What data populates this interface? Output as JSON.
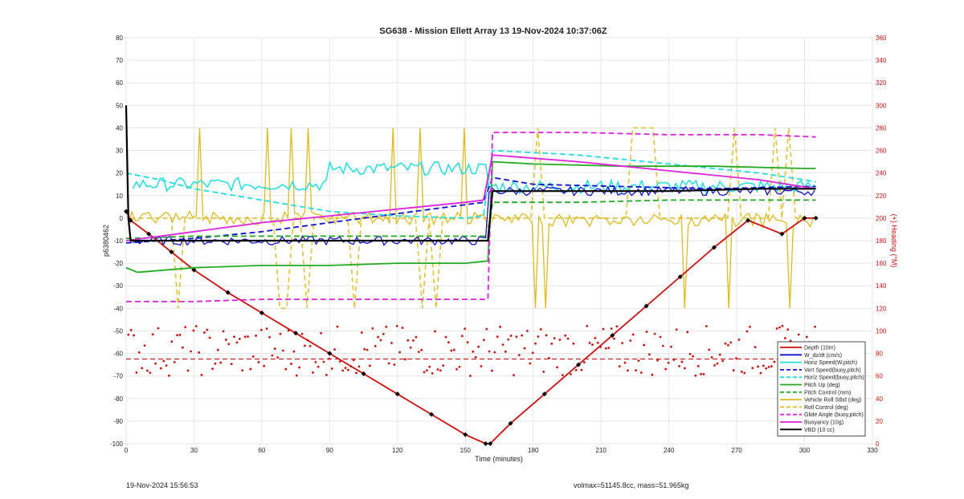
{
  "chart_data": {
    "type": "line",
    "title": "SG638 - Mission Ellett Array 13 19-Nov-2024 10:37:06Z",
    "xlabel": "Time (minutes)",
    "ylabel": "p6380462",
    "y2label": "(+) Heading (°M)",
    "xlim": [
      0,
      330
    ],
    "ylim": [
      -100,
      80
    ],
    "y2lim": [
      0,
      360
    ],
    "xticks": [
      0,
      30,
      60,
      90,
      120,
      150,
      180,
      210,
      240,
      270,
      300,
      330
    ],
    "yticks": [
      -100,
      -90,
      -80,
      -70,
      -60,
      -50,
      -40,
      -30,
      -20,
      -10,
      0,
      10,
      20,
      30,
      40,
      50,
      60,
      70,
      80
    ],
    "y2ticks": [
      0,
      20,
      40,
      60,
      80,
      100,
      120,
      140,
      160,
      180,
      200,
      220,
      240,
      260,
      280,
      300,
      320,
      340,
      360
    ],
    "grid": true,
    "legend_position": "bottom-right",
    "series": [
      {
        "name": "Depth (10m)",
        "color": "#cc1111",
        "style": "solid",
        "marker": "diamond",
        "x": [
          0,
          2,
          10,
          20,
          30,
          45,
          60,
          75,
          90,
          105,
          120,
          135,
          150,
          159,
          161,
          170,
          185,
          200,
          215,
          230,
          245,
          260,
          275,
          290,
          300,
          305
        ],
        "y": [
          3,
          -1,
          -7,
          -15,
          -23,
          -33,
          -42,
          -51,
          -60,
          -69,
          -78,
          -87,
          -96,
          -100,
          -100,
          -91,
          -78,
          -65,
          -52,
          -39,
          -26,
          -13,
          -1,
          -7,
          0,
          0
        ]
      },
      {
        "name": "Vert Speed (buoy,pitch)",
        "color": "#1111cc",
        "style": "dashed",
        "x": [
          0,
          30,
          60,
          90,
          120,
          158,
          162,
          180,
          220,
          260,
          300,
          305
        ],
        "y": [
          -11,
          -9,
          -6,
          -2,
          2,
          7,
          18,
          15,
          14,
          13,
          14,
          14
        ]
      },
      {
        "name": "Horiz Speed (buoy,pitch)",
        "color": "#22dddd",
        "style": "dashed",
        "x": [
          0,
          15,
          30,
          60,
          90,
          120,
          150,
          158,
          162,
          200,
          240,
          280,
          300,
          305
        ],
        "y": [
          20,
          17,
          13,
          8,
          3,
          1,
          0,
          1,
          30,
          28,
          24,
          20,
          17,
          16
        ]
      },
      {
        "name": "Pitch Up (deg)",
        "color": "#22aa22",
        "style": "solid",
        "x": [
          0,
          5,
          30,
          60,
          90,
          120,
          150,
          160,
          162,
          180,
          220,
          260,
          300,
          305
        ],
        "y": [
          -22,
          -24,
          -22,
          -21,
          -21,
          -20,
          -20,
          -19,
          25,
          24,
          23,
          23,
          22,
          22
        ]
      },
      {
        "name": "Pitch Control (mm)",
        "color": "#22aa22",
        "style": "dashed",
        "x": [
          0,
          30,
          60,
          90,
          120,
          150,
          160,
          162,
          200,
          240,
          280,
          305
        ],
        "y": [
          -9,
          -8,
          -8,
          -8,
          -8,
          -8,
          -8,
          7,
          7,
          8,
          8,
          8
        ]
      },
      {
        "name": "Glide Angle (buoy,pitch)",
        "color": "#dd22dd",
        "style": "dashed",
        "x": [
          0,
          30,
          60,
          90,
          120,
          150,
          160,
          162,
          200,
          240,
          280,
          305
        ],
        "y": [
          -37,
          -37,
          -36,
          -36,
          -36,
          -36,
          -36,
          38,
          38,
          37,
          37,
          36
        ]
      },
      {
        "name": "Buoyancy (10g)",
        "color": "#dd22dd",
        "style": "solid",
        "x": [
          0,
          30,
          60,
          90,
          120,
          150,
          158,
          162,
          200,
          240,
          280,
          305
        ],
        "y": [
          -10,
          -6,
          -2,
          1,
          4,
          7,
          8,
          28,
          25,
          21,
          17,
          13
        ]
      },
      {
        "name": "VBD (10 cc)",
        "color": "#000000",
        "style": "solid",
        "x": [
          0,
          1,
          2,
          5,
          30,
          60,
          90,
          120,
          150,
          160,
          162,
          200,
          240,
          280,
          305
        ],
        "y": [
          50,
          0,
          -10,
          -10,
          -10,
          -10,
          -10,
          -10,
          -10,
          -10,
          12,
          12,
          12,
          13,
          13
        ]
      }
    ]
  },
  "legend": [
    {
      "label": "Depth (10m)",
      "color": "#cc1111",
      "style": "solid"
    },
    {
      "label": "W_dz/dt (cm/s)",
      "color": "#1111cc",
      "style": "solid"
    },
    {
      "label": "Horiz Speed(W,pitch)",
      "color": "#22dddd",
      "style": "solid"
    },
    {
      "label": "Vert Speed(buoy,pitch)",
      "color": "#1111cc",
      "style": "dashed"
    },
    {
      "label": "Horiz Speed(buoy,pitch)",
      "color": "#22dddd",
      "style": "dashed"
    },
    {
      "label": "Pitch Up (deg)",
      "color": "#22aa22",
      "style": "solid"
    },
    {
      "label": "Pitch Control (mm)",
      "color": "#22aa22",
      "style": "dashed"
    },
    {
      "label": "Vehicle Roll Stbd (deg)",
      "color": "#ddbb22",
      "style": "solid"
    },
    {
      "label": "Roll Control (deg)",
      "color": "#ddbb22",
      "style": "dashed"
    },
    {
      "label": "Glide Angle (buoy,pitch)",
      "color": "#dd22dd",
      "style": "dashed"
    },
    {
      "label": "Buoyancy (10g)",
      "color": "#dd22dd",
      "style": "solid"
    },
    {
      "label": "VBD (10 cc)",
      "color": "#000000",
      "style": "solid"
    }
  ],
  "footer": {
    "left": "19-Nov-2024 15:56:53",
    "right": "volmax=51145.8cc, mass=51.965kg"
  }
}
